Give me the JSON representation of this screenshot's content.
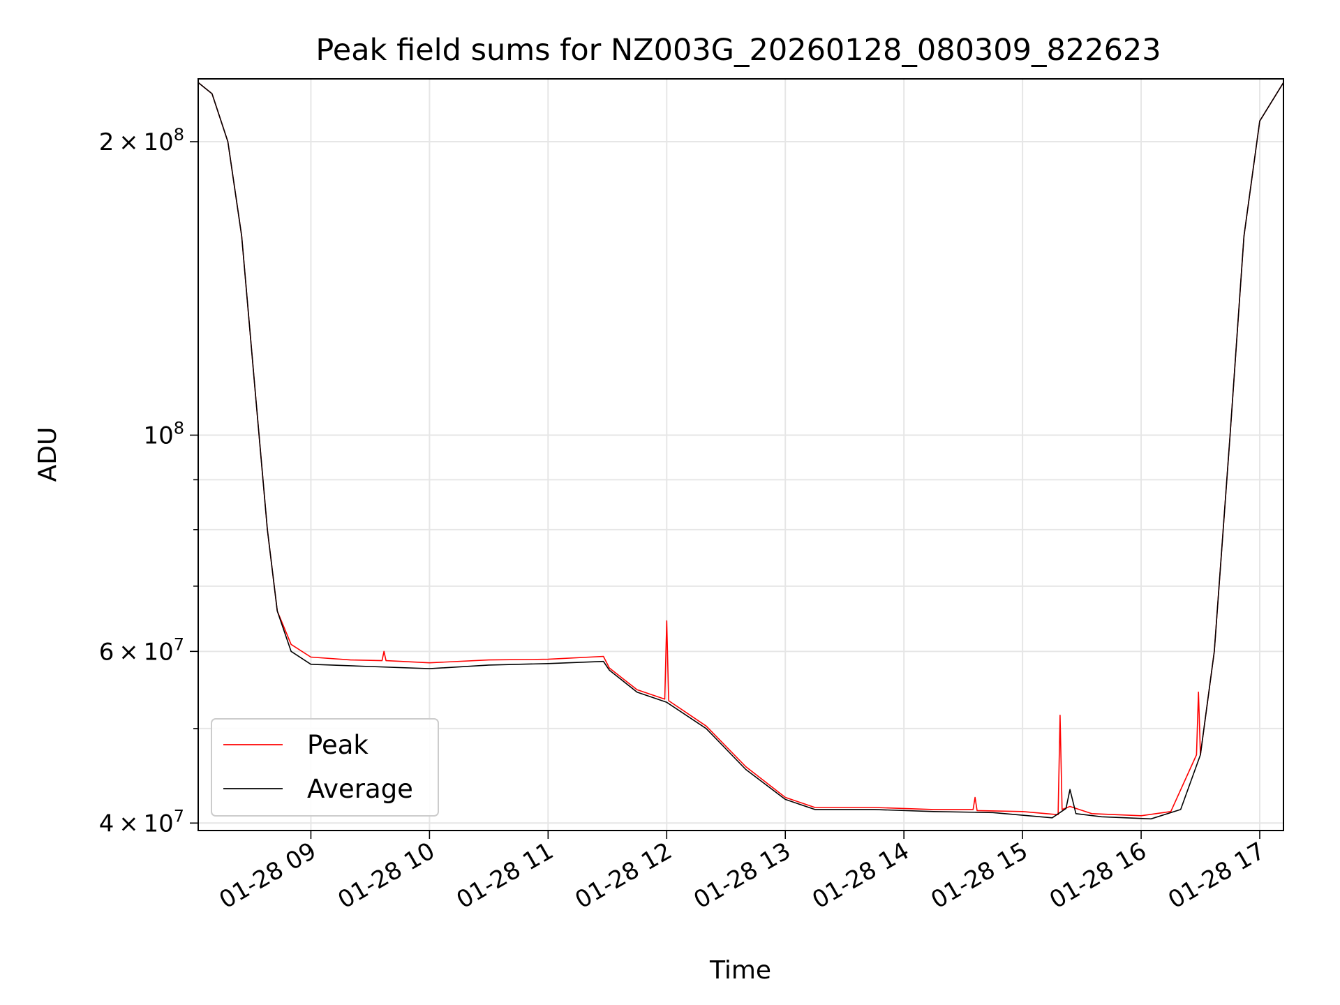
{
  "chart_data": {
    "type": "line",
    "title": "Peak field sums for NZ003G_20260128_080309_822623",
    "xlabel": "Time",
    "ylabel": "ADU",
    "y_scale": "log",
    "ylim": [
      39300000,
      232000000
    ],
    "xlim": [
      "2026-01-28 08:03",
      "2026-01-28 17:12"
    ],
    "grid": true,
    "legend_position": "lower-left",
    "x_tick_labels": [
      "01-28 09",
      "01-28 10",
      "01-28 11",
      "01-28 12",
      "01-28 13",
      "01-28 14",
      "01-28 15",
      "01-28 16",
      "01-28 17"
    ],
    "x_ticks": [
      "2026-01-28 09:00",
      "2026-01-28 10:00",
      "2026-01-28 11:00",
      "2026-01-28 12:00",
      "2026-01-28 13:00",
      "2026-01-28 14:00",
      "2026-01-28 15:00",
      "2026-01-28 16:00",
      "2026-01-28 17:00"
    ],
    "y_tick_labels": [
      {
        "value": 40000000,
        "base": "4",
        "exp": "7"
      },
      {
        "value": 60000000,
        "base": "6",
        "exp": "7"
      },
      {
        "value": 100000000,
        "base": "",
        "exp": "8"
      },
      {
        "value": 200000000,
        "base": "2",
        "exp": "8"
      }
    ],
    "series": [
      {
        "name": "Peak",
        "color": "#ff0000",
        "x": [
          "2026-01-28 08:03",
          "2026-01-28 08:10",
          "2026-01-28 08:18",
          "2026-01-28 08:25",
          "2026-01-28 08:32",
          "2026-01-28 08:38",
          "2026-01-28 08:43",
          "2026-01-28 08:50",
          "2026-01-28 09:00",
          "2026-01-28 09:20",
          "2026-01-28 09:36",
          "2026-01-28 09:37",
          "2026-01-28 09:38",
          "2026-01-28 10:00",
          "2026-01-28 10:30",
          "2026-01-28 11:00",
          "2026-01-28 11:28",
          "2026-01-28 11:31",
          "2026-01-28 11:45",
          "2026-01-28 11:59",
          "2026-01-28 12:00",
          "2026-01-28 12:01",
          "2026-01-28 12:20",
          "2026-01-28 12:40",
          "2026-01-28 13:00",
          "2026-01-28 13:15",
          "2026-01-28 13:45",
          "2026-01-28 14:15",
          "2026-01-28 14:35",
          "2026-01-28 14:36",
          "2026-01-28 14:37",
          "2026-01-28 15:00",
          "2026-01-28 15:18",
          "2026-01-28 15:19",
          "2026-01-28 15:20",
          "2026-01-28 15:24",
          "2026-01-28 15:35",
          "2026-01-28 16:00",
          "2026-01-28 16:15",
          "2026-01-28 16:28",
          "2026-01-28 16:29",
          "2026-01-28 16:30",
          "2026-01-28 16:37",
          "2026-01-28 16:45",
          "2026-01-28 16:52",
          "2026-01-28 17:00",
          "2026-01-28 17:12"
        ],
        "y": [
          230000000,
          224000000,
          200000000,
          160000000,
          110000000,
          80000000,
          66000000,
          61000000,
          59200000,
          58800000,
          58700000,
          60000000,
          58700000,
          58400000,
          58800000,
          58900000,
          59300000,
          57700000,
          54800000,
          53600000,
          64500000,
          53400000,
          50300000,
          45700000,
          42500000,
          41500000,
          41500000,
          41300000,
          41300000,
          42500000,
          41200000,
          41100000,
          40800000,
          51600000,
          41300000,
          41600000,
          40900000,
          40700000,
          41100000,
          47000000,
          54500000,
          47000000,
          60000000,
          100000000,
          160000000,
          210000000,
          230000000
        ]
      },
      {
        "name": "Average",
        "color": "#000000",
        "x": [
          "2026-01-28 08:03",
          "2026-01-28 08:10",
          "2026-01-28 08:18",
          "2026-01-28 08:25",
          "2026-01-28 08:32",
          "2026-01-28 08:38",
          "2026-01-28 08:43",
          "2026-01-28 08:50",
          "2026-01-28 09:00",
          "2026-01-28 09:30",
          "2026-01-28 10:00",
          "2026-01-28 10:30",
          "2026-01-28 11:00",
          "2026-01-28 11:28",
          "2026-01-28 11:31",
          "2026-01-28 11:45",
          "2026-01-28 12:00",
          "2026-01-28 12:20",
          "2026-01-28 12:40",
          "2026-01-28 13:00",
          "2026-01-28 13:15",
          "2026-01-28 13:45",
          "2026-01-28 14:15",
          "2026-01-28 14:45",
          "2026-01-28 15:15",
          "2026-01-28 15:22",
          "2026-01-28 15:24",
          "2026-01-28 15:27",
          "2026-01-28 15:40",
          "2026-01-28 16:05",
          "2026-01-28 16:20",
          "2026-01-28 16:30",
          "2026-01-28 16:37",
          "2026-01-28 16:45",
          "2026-01-28 16:52",
          "2026-01-28 17:00",
          "2026-01-28 17:12"
        ],
        "y": [
          230000000,
          224000000,
          200000000,
          160000000,
          110000000,
          80000000,
          66000000,
          60000000,
          58200000,
          57900000,
          57600000,
          58100000,
          58300000,
          58600000,
          57400000,
          54500000,
          53200000,
          50000000,
          45400000,
          42300000,
          41300000,
          41300000,
          41100000,
          41000000,
          40500000,
          41400000,
          43300000,
          40900000,
          40600000,
          40400000,
          41300000,
          47000000,
          60000000,
          100000000,
          160000000,
          210000000,
          230000000
        ]
      }
    ]
  }
}
